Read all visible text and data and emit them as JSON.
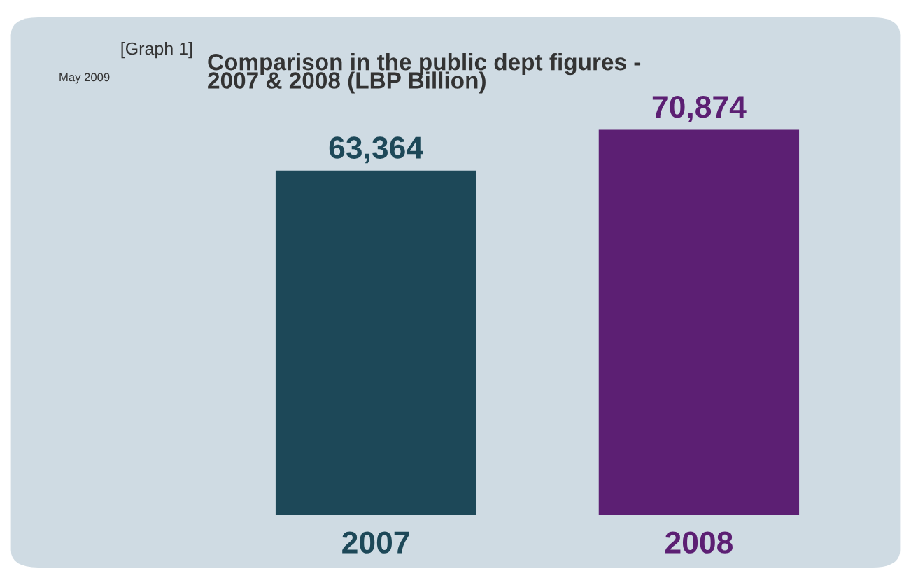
{
  "chart_data": {
    "type": "bar",
    "title": "Comparison in the public dept figures -\n2007 & 2008 (LBP Billion)",
    "categories": [
      "2007",
      "2008"
    ],
    "values": [
      63364,
      70874
    ],
    "colors": [
      "#1d4858",
      "#5c1f73"
    ],
    "value_labels": [
      "63,364",
      "70,874"
    ],
    "annotations": [
      "[Graph 1]",
      "May 2009"
    ],
    "grid": false,
    "legend": false
  }
}
